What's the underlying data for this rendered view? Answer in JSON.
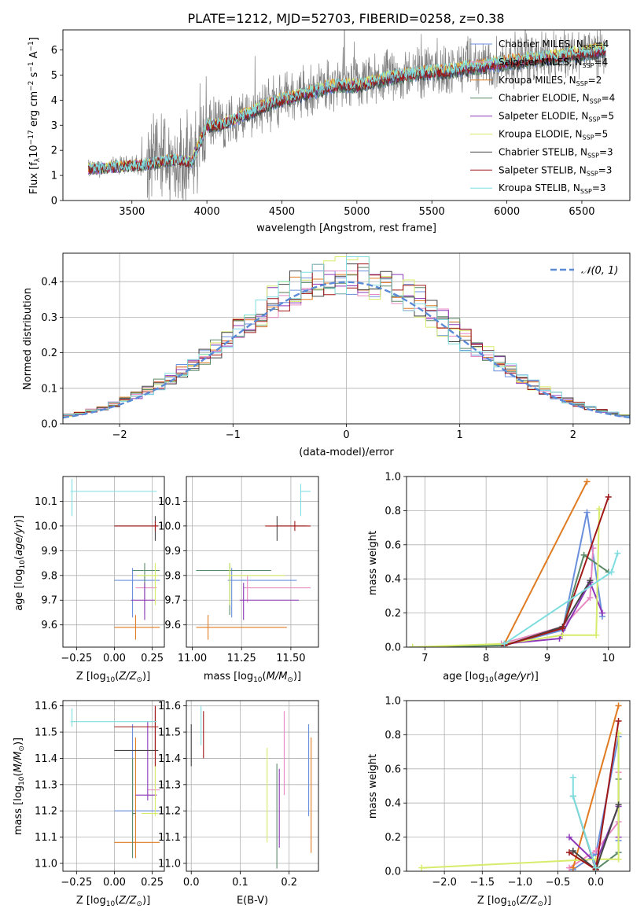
{
  "figure": {
    "title": "PLATE=1212, MJD=52703, FIBERID=0258, z=0.38"
  },
  "series": [
    {
      "name": "Chabrier MILES",
      "legend": "Chabrier MILES, N$SSP=4",
      "color": "#6a8fdc",
      "nssp": 4
    },
    {
      "name": "Salpeter MILES",
      "legend": "Salpeter MILES, NSSP=4",
      "color": "#e88bc4",
      "nssp": 4
    },
    {
      "name": "Kroupa MILES",
      "legend": "Kroupa MILES, NSSP=2",
      "color": "#e07b22",
      "nssp": 2
    },
    {
      "name": "Chabrier ELODIE",
      "legend": "Chabrier ELODIE, NSSP=4",
      "color": "#5b8a68",
      "nssp": 4
    },
    {
      "name": "Salpeter ELODIE",
      "legend": "Salpeter ELODIE, NSSP=5",
      "color": "#8c38b8",
      "nssp": 5
    },
    {
      "name": "Kroupa ELODIE",
      "legend": "Kroupa ELODIE, NSSP=5",
      "color": "#d6ec6a",
      "nssp": 5
    },
    {
      "name": "Chabrier STELIB",
      "legend": "Chabrier STELIB, NSSP=3",
      "color": "#444444",
      "nssp": 3
    },
    {
      "name": "Salpeter STELIB",
      "legend": "Salpeter STELIB, NSSP=3",
      "color": "#a01818",
      "nssp": 3
    },
    {
      "name": "Kroupa STELIB",
      "legend": "Kroupa STELIB, NSSP=3",
      "color": "#7fdde0",
      "nssp": 3
    }
  ],
  "chart_data": [
    {
      "id": "spectrum",
      "type": "line",
      "xlabel": "wavelength [Angstrom, rest frame]",
      "ylabel": "Flux [f_λ 10^-17 erg cm^-2 s^-1 A^-1]",
      "xlim": [
        3040,
        6820
      ],
      "ylim": [
        0,
        6.8
      ],
      "xticks": [
        3500,
        4000,
        4500,
        5000,
        5500,
        6000,
        6500
      ],
      "yticks": [
        0,
        1,
        2,
        3,
        4,
        5,
        6
      ],
      "legend_loc": "upper right",
      "data_color": "#808080",
      "model_wavelength_range": [
        3210,
        6660
      ],
      "continuum_model": {
        "x": [
          3210,
          3300,
          3400,
          3500,
          3600,
          3700,
          3800,
          3900,
          4000,
          4100,
          4200,
          4300,
          4400,
          4500,
          4600,
          4700,
          4800,
          4900,
          5000,
          5100,
          5200,
          5300,
          5400,
          5500,
          5600,
          5700,
          5800,
          5900,
          6000,
          6100,
          6200,
          6300,
          6400,
          6500,
          6600,
          6660
        ],
        "y": [
          1.25,
          1.3,
          1.35,
          1.4,
          1.45,
          1.55,
          1.65,
          1.55,
          3.0,
          3.05,
          3.3,
          3.55,
          3.85,
          4.05,
          4.2,
          4.35,
          4.55,
          4.65,
          4.6,
          4.75,
          4.9,
          5.0,
          5.1,
          5.15,
          5.2,
          5.3,
          5.35,
          5.45,
          5.55,
          5.6,
          5.7,
          5.75,
          5.85,
          5.9,
          6.0,
          6.05
        ]
      }
    },
    {
      "id": "residuals",
      "type": "histogram",
      "xlabel": "(data-model)/error",
      "ylabel": "Normed distribution",
      "xlim": [
        -2.5,
        2.5
      ],
      "ylim": [
        0,
        0.48
      ],
      "xticks": [
        -2,
        -1,
        0,
        1,
        2
      ],
      "yticks": [
        0.0,
        0.1,
        0.2,
        0.3,
        0.4
      ],
      "legend": [
        "𝒩(0, 1)"
      ],
      "legend_loc": "upper right",
      "reference_curve": {
        "name": "N(0,1)",
        "color": "#5b8bd6",
        "mean": 0,
        "sigma": 1
      },
      "bin_edges_range": [
        -2.5,
        2.5
      ],
      "n_bins": 50,
      "per_series_peak": [
        0.43,
        0.43,
        0.42,
        0.44,
        0.42,
        0.47,
        0.45,
        0.45,
        0.47
      ]
    },
    {
      "id": "age_vs_Z",
      "type": "errorbar",
      "xlabel": "Z [log10(Z/Z⊙)]",
      "ylabel": "age [log10(age/yr)]",
      "xlim": [
        -0.34,
        0.33
      ],
      "ylim": [
        9.51,
        10.2
      ],
      "xticks": [
        -0.25,
        0.0,
        0.25
      ],
      "yticks": [
        9.6,
        9.7,
        9.8,
        9.9,
        10.0,
        10.1
      ],
      "points": [
        {
          "series": "Chabrier MILES",
          "x": 0.12,
          "xerr": [
            0.12,
            0.18
          ],
          "y": 9.78,
          "yerr": [
            0.15,
            0.05
          ]
        },
        {
          "series": "Salpeter MILES",
          "x": 0.2,
          "xerr": [
            0.06,
            0.08
          ],
          "y": 9.75,
          "yerr": [
            0.06,
            0.05
          ]
        },
        {
          "series": "Kroupa MILES",
          "x": 0.14,
          "xerr": [
            0.14,
            0.16
          ],
          "y": 9.59,
          "yerr": [
            0.05,
            0.05
          ]
        },
        {
          "series": "Chabrier ELODIE",
          "x": 0.2,
          "xerr": [
            0.08,
            0.1
          ],
          "y": 9.82,
          "yerr": [
            0.18,
            0.03
          ]
        },
        {
          "series": "Salpeter ELODIE",
          "x": 0.2,
          "xerr": [
            0.09,
            0.07
          ],
          "y": 9.7,
          "yerr": [
            0.08,
            0.07
          ]
        },
        {
          "series": "Kroupa ELODIE",
          "x": 0.27,
          "xerr": [
            0.12,
            0.02
          ],
          "y": 9.8,
          "yerr": [
            0.12,
            0.05
          ]
        },
        {
          "series": "Chabrier STELIB",
          "x": 0.27,
          "xerr": [
            0.27,
            0.02
          ],
          "y": 10.0,
          "yerr": [
            0.06,
            0.04
          ]
        },
        {
          "series": "Salpeter STELIB",
          "x": 0.27,
          "xerr": [
            0.27,
            0.02
          ],
          "y": 10.0,
          "yerr": [
            0.02,
            0.02
          ]
        },
        {
          "series": "Kroupa STELIB",
          "x": -0.28,
          "xerr": [
            0.01,
            0.56
          ],
          "y": 10.14,
          "yerr": [
            0.1,
            0.05
          ]
        }
      ]
    },
    {
      "id": "age_vs_mass",
      "type": "errorbar",
      "xlabel": "mass [log10(M/M⊙)]",
      "ylabel": "",
      "xlim": [
        10.97,
        11.64
      ],
      "ylim": [
        9.51,
        10.2
      ],
      "xticks": [
        11.0,
        11.25,
        11.5
      ],
      "yticks": [
        9.6,
        9.7,
        9.8,
        9.9,
        10.0,
        10.1
      ],
      "points": [
        {
          "series": "Chabrier MILES",
          "x": 11.2,
          "xerr": [
            0.02,
            0.33
          ],
          "y": 9.78,
          "yerr": [
            0.15,
            0.05
          ]
        },
        {
          "series": "Salpeter MILES",
          "x": 11.28,
          "xerr": [
            0.02,
            0.32
          ],
          "y": 9.75,
          "yerr": [
            0.06,
            0.05
          ]
        },
        {
          "series": "Kroupa MILES",
          "x": 11.08,
          "xerr": [
            0.06,
            0.4
          ],
          "y": 9.59,
          "yerr": [
            0.05,
            0.05
          ]
        },
        {
          "series": "Chabrier ELODIE",
          "x": 11.19,
          "xerr": [
            0.17,
            0.21
          ],
          "y": 9.82,
          "yerr": [
            0.18,
            0.03
          ]
        },
        {
          "series": "Salpeter ELODIE",
          "x": 11.26,
          "xerr": [
            0.02,
            0.28
          ],
          "y": 9.7,
          "yerr": [
            0.08,
            0.07
          ]
        },
        {
          "series": "Kroupa ELODIE",
          "x": 11.19,
          "xerr": [
            0.01,
            0.28
          ],
          "y": 9.8,
          "yerr": [
            0.12,
            0.05
          ]
        },
        {
          "series": "Chabrier STELIB",
          "x": 11.43,
          "xerr": [
            0.0,
            0.15
          ],
          "y": 10.0,
          "yerr": [
            0.06,
            0.04
          ]
        },
        {
          "series": "Salpeter STELIB",
          "x": 11.52,
          "xerr": [
            0.15,
            0.08
          ],
          "y": 10.0,
          "yerr": [
            0.02,
            0.02
          ]
        },
        {
          "series": "Kroupa STELIB",
          "x": 11.55,
          "xerr": [
            0.0,
            0.05
          ],
          "y": 10.14,
          "yerr": [
            0.1,
            0.03
          ]
        }
      ]
    },
    {
      "id": "weight_vs_age",
      "type": "line",
      "xlabel": "age [log10(age/yr)]",
      "ylabel": "mass weight",
      "xlim": [
        6.7,
        10.35
      ],
      "ylim": [
        0,
        1
      ],
      "xticks": [
        7,
        8,
        9,
        10
      ],
      "yticks": [
        0.0,
        0.2,
        0.4,
        0.6,
        0.8,
        1.0
      ],
      "lines": [
        {
          "series": "Chabrier MILES",
          "x": [
            8.3,
            9.25,
            9.65,
            9.9
          ],
          "y": [
            0.01,
            0.1,
            0.79,
            0.18
          ]
        },
        {
          "series": "Salpeter MILES",
          "x": [
            8.25,
            9.25,
            9.7,
            9.75
          ],
          "y": [
            0.02,
            0.12,
            0.29,
            0.58
          ]
        },
        {
          "series": "Kroupa MILES",
          "x": [
            8.3,
            9.65
          ],
          "y": [
            0.02,
            0.97
          ]
        },
        {
          "series": "Chabrier ELODIE",
          "x": [
            6.8,
            8.3,
            9.25,
            9.6,
            10.0
          ],
          "y": [
            0.0,
            0.01,
            0.11,
            0.54,
            0.44
          ]
        },
        {
          "series": "Salpeter ELODIE",
          "x": [
            8.3,
            9.2,
            9.7,
            9.9
          ],
          "y": [
            0.02,
            0.05,
            0.38,
            0.2
          ]
        },
        {
          "series": "Kroupa ELODIE",
          "x": [
            6.8,
            8.3,
            9.25,
            9.8,
            9.85
          ],
          "y": [
            0.0,
            0.02,
            0.07,
            0.07,
            0.81
          ]
        },
        {
          "series": "Chabrier STELIB",
          "x": [
            8.3,
            9.25,
            9.7
          ],
          "y": [
            0.01,
            0.12,
            0.39
          ]
        },
        {
          "series": "Salpeter STELIB",
          "x": [
            8.3,
            9.25,
            10.0
          ],
          "y": [
            0.01,
            0.11,
            0.88
          ]
        },
        {
          "series": "Kroupa STELIB",
          "x": [
            8.3,
            10.05,
            10.15
          ],
          "y": [
            0.02,
            0.44,
            0.55
          ]
        }
      ]
    },
    {
      "id": "mass_vs_Z",
      "type": "errorbar",
      "xlabel": "Z [log10(Z/Z⊙)]",
      "ylabel": "mass [log10(M/M⊙)]",
      "xlim": [
        -0.34,
        0.33
      ],
      "ylim": [
        10.97,
        11.62
      ],
      "xticks": [
        -0.25,
        0.0,
        0.25
      ],
      "yticks": [
        11.0,
        11.1,
        11.2,
        11.3,
        11.4,
        11.5,
        11.6
      ],
      "points": [
        {
          "series": "Chabrier MILES",
          "x": 0.12,
          "xerr": [
            0.12,
            0.18
          ],
          "y": 11.2,
          "yerr": [
            0.02,
            0.33
          ]
        },
        {
          "series": "Salpeter MILES",
          "x": 0.27,
          "xerr": [
            0.05,
            0.03
          ],
          "y": 11.28,
          "yerr": [
            0.02,
            0.32
          ]
        },
        {
          "series": "Kroupa MILES",
          "x": 0.14,
          "xerr": [
            0.14,
            0.16
          ],
          "y": 11.08,
          "yerr": [
            0.06,
            0.4
          ]
        },
        {
          "series": "Chabrier ELODIE",
          "x": 0.12,
          "xerr": [
            0.0,
            0.02
          ],
          "y": 11.19,
          "yerr": [
            0.17,
            0.21
          ]
        },
        {
          "series": "Salpeter ELODIE",
          "x": 0.22,
          "xerr": [
            0.08,
            0.06
          ],
          "y": 11.26,
          "yerr": [
            0.02,
            0.28
          ]
        },
        {
          "series": "Kroupa ELODIE",
          "x": 0.27,
          "xerr": [
            0.09,
            0.02
          ],
          "y": 11.19,
          "yerr": [
            0.01,
            0.28
          ]
        },
        {
          "series": "Chabrier STELIB",
          "x": 0.27,
          "xerr": [
            0.27,
            0.02
          ],
          "y": 11.43,
          "yerr": [
            0.0,
            0.15
          ]
        },
        {
          "series": "Salpeter STELIB",
          "x": 0.27,
          "xerr": [
            0.27,
            0.02
          ],
          "y": 11.52,
          "yerr": [
            0.15,
            0.08
          ]
        },
        {
          "series": "Kroupa STELIB",
          "x": -0.28,
          "xerr": [
            0.01,
            0.56
          ],
          "y": 11.54,
          "yerr": [
            0.02,
            0.05
          ]
        }
      ]
    },
    {
      "id": "mass_vs_ebv",
      "type": "errorbar",
      "xlabel": "E(B-V)",
      "ylabel": "",
      "xlim": [
        -0.01,
        0.26
      ],
      "ylim": [
        10.97,
        11.62
      ],
      "xticks": [
        0.0,
        0.1,
        0.2
      ],
      "yticks": [
        11.0,
        11.1,
        11.2,
        11.3,
        11.4,
        11.5,
        11.6
      ],
      "points": [
        {
          "series": "Chabrier MILES",
          "x": 0.24,
          "xerr": [
            0,
            0
          ],
          "y": 11.2,
          "yerr": [
            0.02,
            0.33
          ]
        },
        {
          "series": "Salpeter MILES",
          "x": 0.19,
          "xerr": [
            0,
            0
          ],
          "y": 11.28,
          "yerr": [
            0.02,
            0.3
          ]
        },
        {
          "series": "Kroupa MILES",
          "x": 0.245,
          "xerr": [
            0,
            0
          ],
          "y": 11.08,
          "yerr": [
            0.04,
            0.4
          ]
        },
        {
          "series": "Chabrier ELODIE",
          "x": 0.175,
          "xerr": [
            0,
            0
          ],
          "y": 11.1,
          "yerr": [
            0.12,
            0.28
          ]
        },
        {
          "series": "Salpeter ELODIE",
          "x": 0.18,
          "xerr": [
            0,
            0
          ],
          "y": 11.26,
          "yerr": [
            0.2,
            0.1
          ]
        },
        {
          "series": "Kroupa ELODIE",
          "x": 0.155,
          "xerr": [
            0,
            0
          ],
          "y": 11.2,
          "yerr": [
            0.12,
            0.24
          ]
        },
        {
          "series": "Chabrier STELIB",
          "x": 0.0,
          "xerr": [
            0,
            0
          ],
          "y": 11.43,
          "yerr": [
            0.06,
            0.1
          ]
        },
        {
          "series": "Salpeter STELIB",
          "x": 0.025,
          "xerr": [
            0,
            0
          ],
          "y": 11.5,
          "yerr": [
            0.1,
            0.08
          ]
        },
        {
          "series": "Kroupa STELIB",
          "x": 0.02,
          "xerr": [
            0,
            0
          ],
          "y": 11.54,
          "yerr": [
            0.09,
            0.06
          ]
        }
      ]
    },
    {
      "id": "weight_vs_Z",
      "type": "line",
      "xlabel": "Z [log10(Z/Z⊙)]",
      "ylabel": "mass weight",
      "xlim": [
        -2.5,
        0.45
      ],
      "ylim": [
        0,
        1
      ],
      "xticks": [
        -2.0,
        -1.5,
        -1.0,
        -0.5,
        0.0
      ],
      "yticks": [
        0.0,
        0.2,
        0.4,
        0.6,
        0.8,
        1.0
      ],
      "lines": [
        {
          "series": "Chabrier MILES",
          "x": [
            -0.3,
            0.0,
            0.3,
            0.3
          ],
          "y": [
            0.01,
            0.1,
            0.79,
            0.18
          ]
        },
        {
          "series": "Salpeter MILES",
          "x": [
            -0.35,
            0.0,
            0.3,
            0.3
          ],
          "y": [
            0.02,
            0.12,
            0.29,
            0.58
          ]
        },
        {
          "series": "Kroupa MILES",
          "x": [
            -0.3,
            0.3
          ],
          "y": [
            0.02,
            0.97
          ]
        },
        {
          "series": "Chabrier ELODIE",
          "x": [
            -0.3,
            0.0,
            0.3,
            0.3
          ],
          "y": [
            0.44,
            0.01,
            0.11,
            0.54
          ]
        },
        {
          "series": "Salpeter ELODIE",
          "x": [
            -0.35,
            0.0,
            0.3,
            0.3
          ],
          "y": [
            0.2,
            0.05,
            0.38,
            0.2
          ]
        },
        {
          "series": "Kroupa ELODIE",
          "x": [
            -2.3,
            0.0,
            0.3,
            0.3
          ],
          "y": [
            0.02,
            0.07,
            0.07,
            0.81
          ]
        },
        {
          "series": "Chabrier STELIB",
          "x": [
            -0.3,
            0.0,
            0.3
          ],
          "y": [
            0.12,
            0.01,
            0.39
          ]
        },
        {
          "series": "Salpeter STELIB",
          "x": [
            -0.35,
            0.0,
            0.3
          ],
          "y": [
            0.11,
            0.01,
            0.88
          ]
        },
        {
          "series": "Kroupa STELIB",
          "x": [
            -0.3,
            -0.3,
            0.0
          ],
          "y": [
            0.55,
            0.44,
            0.02
          ]
        }
      ]
    }
  ]
}
